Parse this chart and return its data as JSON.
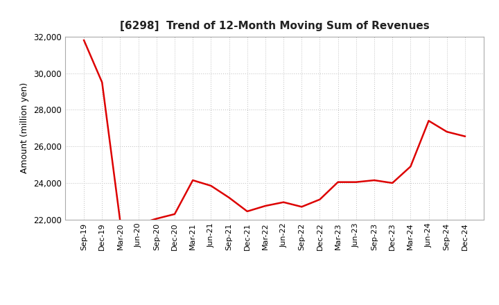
{
  "title": "[6298]  Trend of 12-Month Moving Sum of Revenues",
  "ylabel": "Amount (million yen)",
  "line_color": "#dd0000",
  "background_color": "#ffffff",
  "plot_bg_color": "#ffffff",
  "grid_color": "#bbbbbb",
  "ylim": [
    22000,
    32000
  ],
  "yticks": [
    22000,
    24000,
    26000,
    28000,
    30000,
    32000
  ],
  "labels": [
    "Sep-19",
    "Dec-19",
    "Mar-20",
    "Jun-20",
    "Sep-20",
    "Dec-20",
    "Mar-21",
    "Jun-21",
    "Sep-21",
    "Dec-21",
    "Mar-22",
    "Jun-22",
    "Sep-22",
    "Dec-22",
    "Mar-23",
    "Jun-23",
    "Sep-23",
    "Dec-23",
    "Mar-24",
    "Jun-24",
    "Sep-24",
    "Dec-24"
  ],
  "values": [
    31800,
    29500,
    21900,
    21750,
    22050,
    22300,
    24150,
    23850,
    23200,
    22450,
    22750,
    22950,
    22700,
    23100,
    24050,
    24050,
    24150,
    24000,
    24900,
    27400,
    26800,
    26550
  ]
}
